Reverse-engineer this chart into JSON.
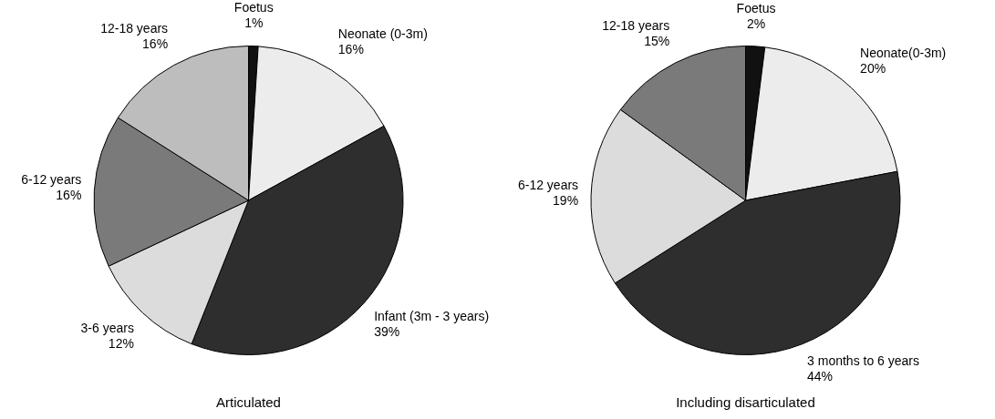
{
  "chart_data": [
    {
      "type": "pie",
      "title": "Articulated",
      "categories": [
        "Foetus",
        "Neonate (0-3m)",
        "Infant (3m - 3 years)",
        "3-6 years",
        "6-12 years",
        "12-18 years"
      ],
      "values": [
        1,
        16,
        39,
        12,
        16,
        16
      ],
      "value_labels": [
        "1%",
        "16%",
        "39%",
        "12%",
        "16%",
        "16%"
      ],
      "colors": [
        "#111111",
        "#ececec",
        "#2e2e2e",
        "#dcdcdc",
        "#7a7a7a",
        "#bdbdbd"
      ]
    },
    {
      "type": "pie",
      "title": "Including disarticulated",
      "categories": [
        "Foetus",
        "Neonate(0-3m)",
        "3 months to 6 years",
        "6-12 years",
        "12-18 years"
      ],
      "values": [
        2,
        20,
        44,
        19,
        15
      ],
      "value_labels": [
        "2%",
        "20%",
        "44%",
        "19%",
        "15%"
      ],
      "colors": [
        "#111111",
        "#ececec",
        "#2e2e2e",
        "#dcdcdc",
        "#7a7a7a"
      ]
    }
  ]
}
